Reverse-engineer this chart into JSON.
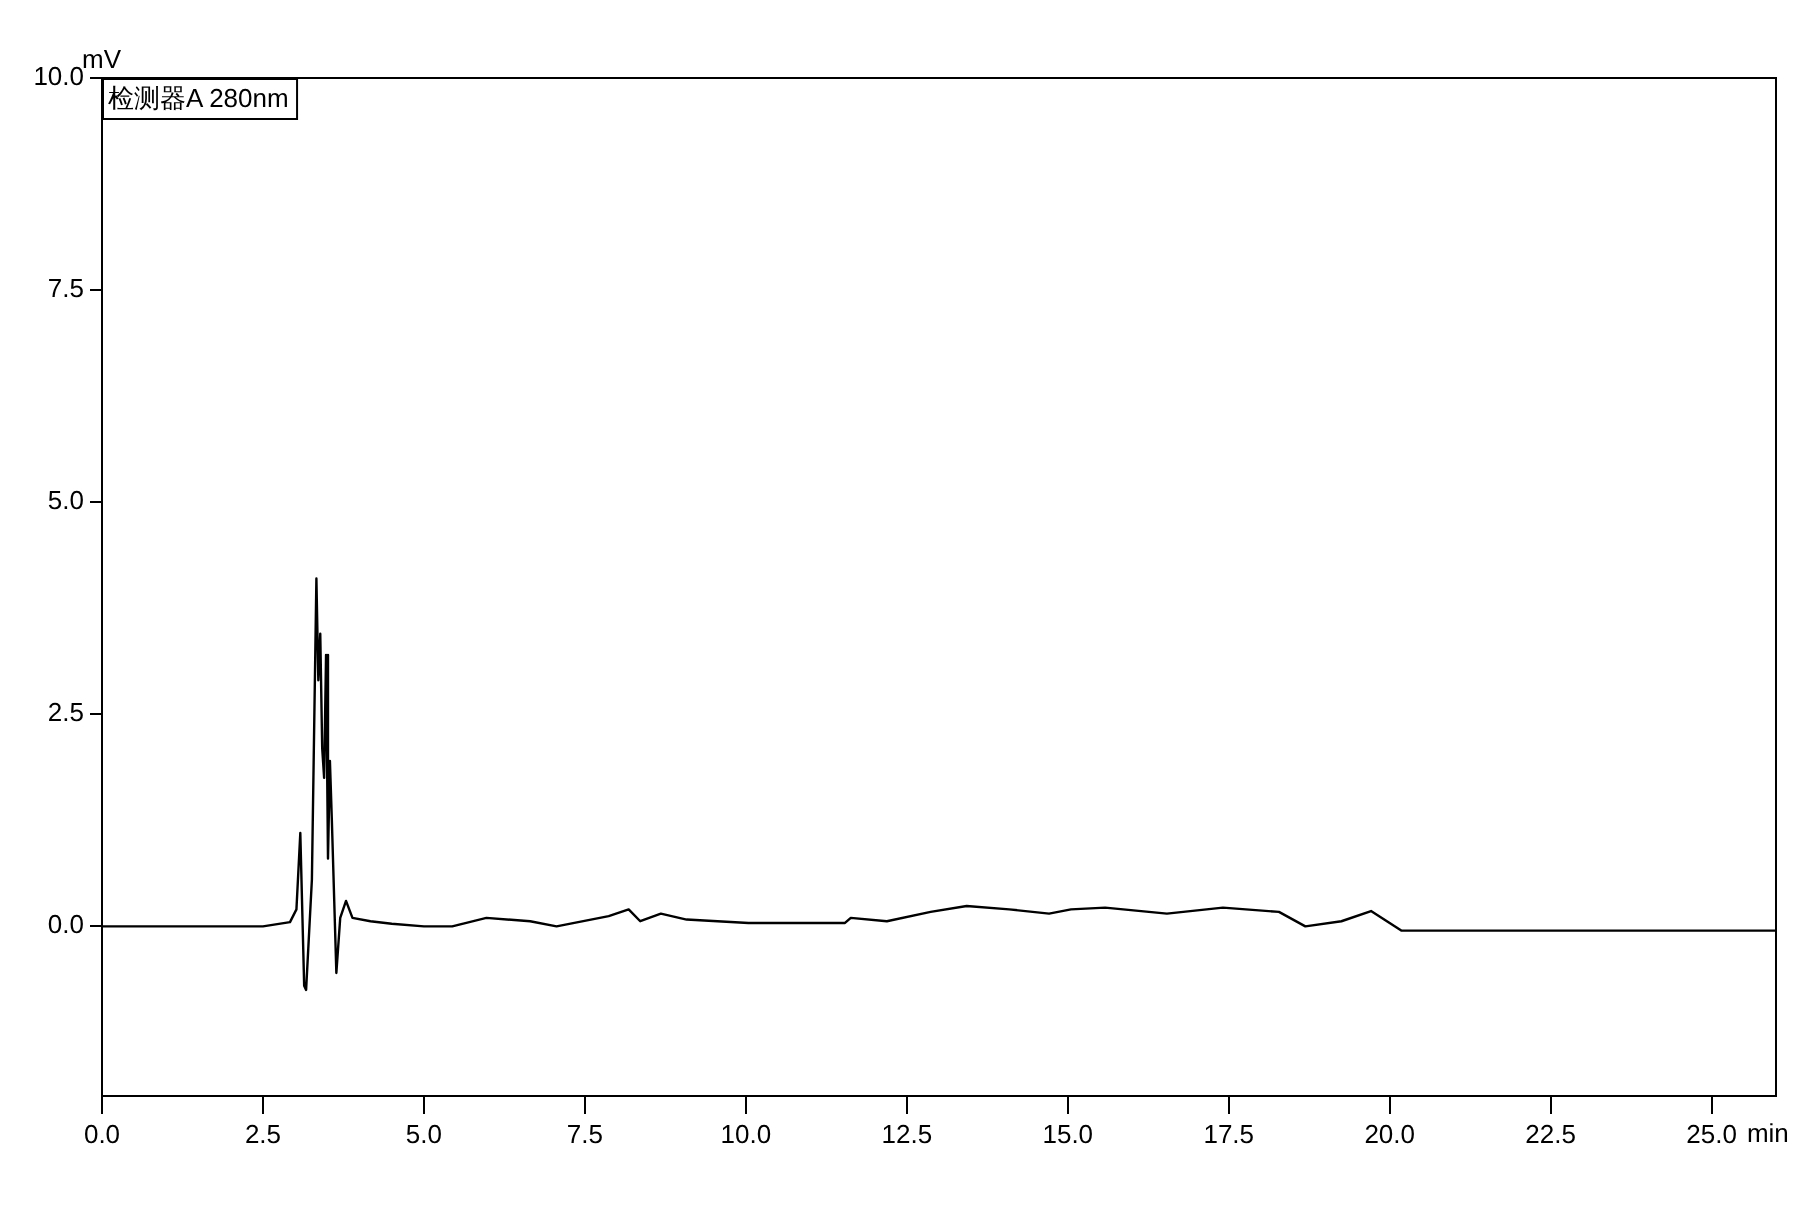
{
  "chart_data": {
    "type": "line",
    "xlabel": "min",
    "ylabel": "mV",
    "x": [
      0,
      1,
      2,
      2.5,
      2.92,
      3.02,
      3.08,
      3.14,
      3.17,
      3.26,
      3.33,
      3.36,
      3.39,
      3.42,
      3.45,
      3.48,
      3.51,
      3.54,
      3.57,
      3.64,
      3.7,
      3.79,
      3.89,
      4.17,
      4.5,
      5,
      5.44,
      5.97,
      6.65,
      7.06,
      7.87,
      8.18,
      8.36,
      8.68,
      9.08,
      10.04,
      11.54,
      11.63,
      12.19,
      12.87,
      13.43,
      14.09,
      14.71,
      15.05,
      15.58,
      16.54,
      17.41,
      18.28,
      18.69,
      19.25,
      19.71,
      20.18,
      22.2,
      25.7,
      26
    ],
    "series": [
      {
        "name": "检测器A 280nm",
        "color": "#000000",
        "values": [
          0,
          0,
          0,
          0,
          0.05,
          0.2,
          1.1,
          -0.7,
          -0.75,
          0.55,
          4.1,
          2.9,
          3.45,
          2.1,
          1.75,
          3.2,
          0.8,
          1.95,
          1.25,
          -0.55,
          0.1,
          0.3,
          0.1,
          0.06,
          0.03,
          0,
          0,
          0.1,
          0.06,
          0,
          0.12,
          0.2,
          0.06,
          0.15,
          0.08,
          0.04,
          0.04,
          0.1,
          0.06,
          0.17,
          0.24,
          0.2,
          0.15,
          0.2,
          0.22,
          0.15,
          0.22,
          0.17,
          0,
          0.06,
          0.18,
          -0.05,
          -0.05,
          -0.05,
          -0.05
        ]
      }
    ],
    "xlim": [
      0,
      26
    ],
    "ylim": [
      -2,
      10
    ],
    "xticks": [
      {
        "value": 0,
        "label": "0.0"
      },
      2.5,
      {
        "value": 5,
        "label": "5.0"
      },
      7.5,
      {
        "value": 10,
        "label": "10.0"
      },
      12.5,
      {
        "value": 15,
        "label": "15.0"
      },
      17.5,
      {
        "value": 20,
        "label": "20.0"
      },
      22.5,
      {
        "value": 25,
        "label": "25.0"
      }
    ],
    "yticks": [
      {
        "value": 0,
        "label": "0.0"
      },
      2.5,
      {
        "value": 5,
        "label": "5.0"
      },
      7.5,
      {
        "value": 10,
        "label": "10.0"
      }
    ],
    "grid": false,
    "legend": "top left",
    "marker": "none",
    "line_style": "solid"
  }
}
